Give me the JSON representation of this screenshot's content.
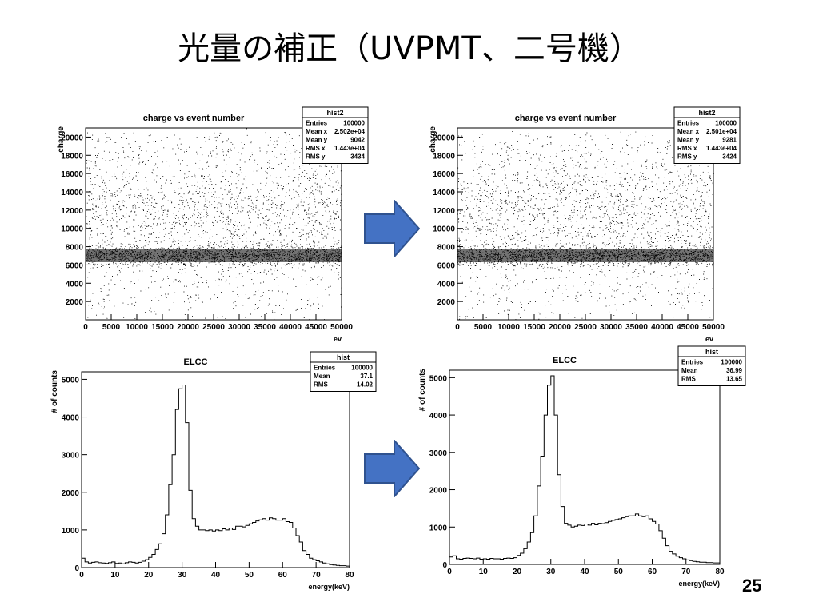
{
  "slide": {
    "title": "光量の補正（UVPMT、二号機）",
    "page_number": "25"
  },
  "arrow_color": "#4472C4",
  "chart_data": [
    {
      "type": "scatter",
      "position": "top-left",
      "title": "charge vs event number",
      "xlabel": "ev",
      "ylabel": "charge",
      "xlim": [
        0,
        50000
      ],
      "ylim": [
        0,
        21000
      ],
      "xticks": [
        "0",
        "5000",
        "10000",
        "15000",
        "20000",
        "25000",
        "30000",
        "35000",
        "40000",
        "45000",
        "50000"
      ],
      "yticks": [
        "2000",
        "4000",
        "6000",
        "8000",
        "10000",
        "12000",
        "14000",
        "16000",
        "18000",
        "20000"
      ],
      "band_center": 7000,
      "stats": {
        "name": "hist2",
        "rows": [
          [
            "Entries",
            "100000"
          ],
          [
            "Mean x",
            "2.502e+04"
          ],
          [
            "Mean y",
            "9042"
          ],
          [
            "RMS x",
            "1.443e+04"
          ],
          [
            "RMS y",
            "3434"
          ]
        ]
      }
    },
    {
      "type": "scatter",
      "position": "top-right",
      "title": "charge vs event number",
      "xlabel": "ev",
      "ylabel": "charge",
      "xlim": [
        0,
        50000
      ],
      "ylim": [
        0,
        21000
      ],
      "xticks": [
        "0",
        "5000",
        "10000",
        "15000",
        "20000",
        "25000",
        "30000",
        "35000",
        "40000",
        "45000",
        "50000"
      ],
      "yticks": [
        "2000",
        "4000",
        "6000",
        "8000",
        "10000",
        "12000",
        "14000",
        "16000",
        "18000",
        "20000"
      ],
      "band_center": 7000,
      "stats": {
        "name": "hist2",
        "rows": [
          [
            "Entries",
            "100000"
          ],
          [
            "Mean x",
            "2.501e+04"
          ],
          [
            "Mean y",
            "9281"
          ],
          [
            "RMS x",
            "1.443e+04"
          ],
          [
            "RMS y",
            "3424"
          ]
        ]
      }
    },
    {
      "type": "bar",
      "style": "step",
      "position": "bottom-left",
      "title": "ELCC",
      "xlabel": "energy(keV)",
      "ylabel": "# of counts",
      "xlim": [
        0,
        80
      ],
      "ylim": [
        0,
        5200
      ],
      "xticks": [
        "0",
        "10",
        "20",
        "30",
        "40",
        "50",
        "60",
        "70",
        "80"
      ],
      "yticks": [
        "0",
        "1000",
        "2000",
        "3000",
        "4000",
        "5000"
      ],
      "bin_width": 1,
      "values": [
        250,
        150,
        120,
        140,
        150,
        130,
        120,
        110,
        130,
        150,
        110,
        120,
        100,
        130,
        150,
        140,
        120,
        140,
        170,
        210,
        270,
        350,
        480,
        630,
        900,
        1400,
        2200,
        3000,
        4200,
        4750,
        4850,
        3850,
        2050,
        1300,
        1100,
        1000,
        1000,
        980,
        1000,
        970,
        1000,
        980,
        1030,
        1000,
        1050,
        1010,
        1100,
        1100,
        1080,
        1120,
        1160,
        1200,
        1240,
        1270,
        1300,
        1260,
        1320,
        1300,
        1260,
        1260,
        1300,
        1220,
        1200,
        1050,
        850,
        680,
        450,
        350,
        250,
        210,
        180,
        150,
        120,
        100,
        80,
        70,
        60,
        50,
        50,
        40
      ],
      "stats": {
        "name": "hist",
        "rows": [
          [
            "Entries",
            "100000"
          ],
          [
            "Mean",
            "37.1"
          ],
          [
            "RMS",
            "14.02"
          ]
        ]
      }
    },
    {
      "type": "bar",
      "style": "step",
      "position": "bottom-right",
      "title": "ELCC",
      "xlabel": "energy(keV)",
      "ylabel": "# of counts",
      "xlim": [
        0,
        80
      ],
      "ylim": [
        0,
        5200
      ],
      "xticks": [
        "0",
        "10",
        "20",
        "30",
        "40",
        "50",
        "60",
        "70",
        "80"
      ],
      "yticks": [
        "0",
        "1000",
        "2000",
        "3000",
        "4000",
        "5000"
      ],
      "bin_width": 1,
      "values": [
        200,
        230,
        150,
        140,
        160,
        170,
        160,
        150,
        170,
        140,
        150,
        140,
        160,
        150,
        150,
        140,
        160,
        170,
        160,
        180,
        240,
        300,
        420,
        600,
        850,
        1300,
        2100,
        2900,
        4000,
        4800,
        5050,
        4000,
        2400,
        1550,
        1100,
        1050,
        1000,
        1020,
        1050,
        1040,
        1080,
        1050,
        1100,
        1060,
        1100,
        1090,
        1120,
        1150,
        1180,
        1200,
        1220,
        1250,
        1280,
        1300,
        1300,
        1350,
        1300,
        1280,
        1300,
        1220,
        1150,
        1080,
        900,
        700,
        500,
        350,
        280,
        220,
        180,
        150,
        120,
        100,
        80,
        70,
        60,
        60,
        50,
        50,
        40,
        40
      ],
      "stats": {
        "name": "hist",
        "rows": [
          [
            "Entries",
            "100000"
          ],
          [
            "Mean",
            "36.99"
          ],
          [
            "RMS",
            "13.65"
          ]
        ]
      }
    }
  ]
}
